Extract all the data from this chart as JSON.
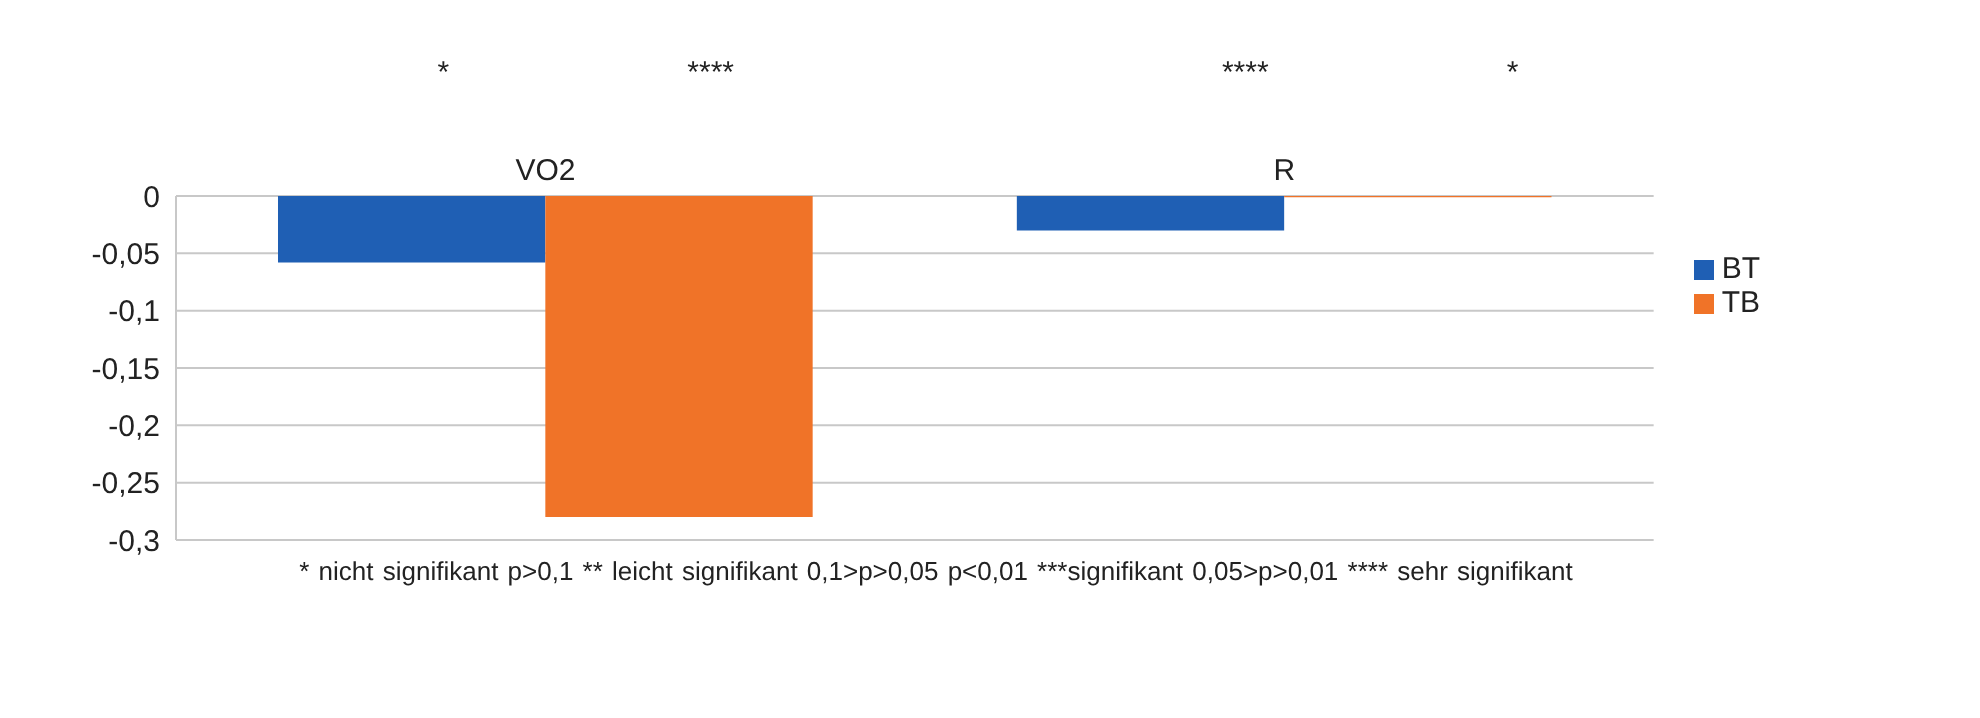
{
  "chart_data": {
    "type": "bar",
    "categories": [
      "VO2",
      "R"
    ],
    "series": [
      {
        "name": "BT",
        "color": "#1f5fb4",
        "values": [
          -0.058,
          -0.03
        ]
      },
      {
        "name": "TB",
        "color": "#f07328",
        "values": [
          -0.28,
          -0.001
        ]
      }
    ],
    "ylim": [
      -0.3,
      0
    ],
    "yticks": [
      {
        "value": -0.3,
        "label": "-0,3"
      },
      {
        "value": -0.25,
        "label": "-0,25"
      },
      {
        "value": -0.2,
        "label": "-0,2"
      },
      {
        "value": -0.15,
        "label": "-0,15"
      },
      {
        "value": -0.1,
        "label": "-0,1"
      },
      {
        "value": -0.05,
        "label": "-0,05"
      },
      0
    ],
    "grid": "y",
    "legend": "right",
    "annotations": [
      "*",
      "****",
      "****",
      "*",
      "* nicht signifikant p>0,1  ** leicht signifikant 0,1>p>0,05 p<0,01 ***signifikant 0,05>p>0,01  **** sehr signifikant"
    ]
  }
}
